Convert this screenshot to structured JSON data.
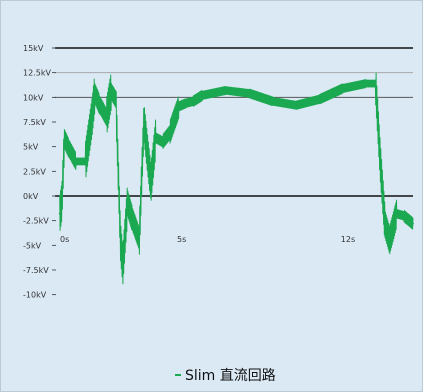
{
  "chart_data": {
    "type": "line",
    "title": "",
    "xlabel": "",
    "ylabel": "",
    "xlim": [
      -0.3,
      15
    ],
    "ylim": [
      -15,
      15
    ],
    "x_ticks": [
      {
        "value": 0,
        "label": "0s"
      },
      {
        "value": 5,
        "label": "5s"
      },
      {
        "value": 12,
        "label": "12s"
      }
    ],
    "y_ticks": [
      {
        "value": 15,
        "label": "15kV"
      },
      {
        "value": 12.5,
        "label": "12.5kV"
      },
      {
        "value": 10,
        "label": "10kV"
      },
      {
        "value": 7.5,
        "label": "7.5kV"
      },
      {
        "value": 5,
        "label": "5kV"
      },
      {
        "value": 2.5,
        "label": "2.5kV"
      },
      {
        "value": 0,
        "label": "0kV"
      },
      {
        "value": -2.5,
        "label": "-2.5kV"
      },
      {
        "value": -5,
        "label": "-5kV"
      },
      {
        "value": -7.5,
        "label": "-7.5kV"
      },
      {
        "value": -10,
        "label": "-10kV"
      }
    ],
    "reference_lines": [
      {
        "y": 15,
        "color": "#111111"
      },
      {
        "y": 12.5,
        "color": "#a8a8a8"
      },
      {
        "y": 10,
        "color": "#555555"
      },
      {
        "y": 0,
        "color": "#111111"
      }
    ],
    "grid": false,
    "legend_position": "bottom-center",
    "series": [
      {
        "name": "Slim 直流回路",
        "color": "#1aa850",
        "x": [
          -0.1,
          0.0,
          0.1,
          0.3,
          0.6,
          1.0,
          1.3,
          1.4,
          1.6,
          1.9,
          2.1,
          2.3,
          2.5,
          2.6,
          2.8,
          3.0,
          3.3,
          3.5,
          3.8,
          4.0,
          4.3,
          4.6,
          5.0,
          5.3,
          5.6,
          6.0,
          7.0,
          8.0,
          9.0,
          10.0,
          11.0,
          12.0,
          13.0,
          13.4,
          13.6,
          13.8,
          14.0,
          14.3,
          14.6,
          15.0
        ],
        "y": [
          -1.8,
          -0.5,
          5.8,
          4.8,
          3.5,
          3.5,
          8.3,
          10.4,
          9.3,
          8.0,
          10.6,
          9.8,
          -4.6,
          -7.0,
          -0.7,
          -2.3,
          -4.3,
          7.5,
          1.3,
          5.9,
          5.5,
          6.4,
          9.1,
          9.4,
          9.6,
          10.2,
          10.7,
          10.4,
          9.6,
          9.2,
          9.8,
          10.9,
          11.4,
          11.4,
          3.6,
          -2.8,
          -4.5,
          -1.8,
          -2.0,
          -2.8
        ]
      }
    ]
  },
  "legend": {
    "label": "Slim 直流回路",
    "color": "#1aa850"
  }
}
